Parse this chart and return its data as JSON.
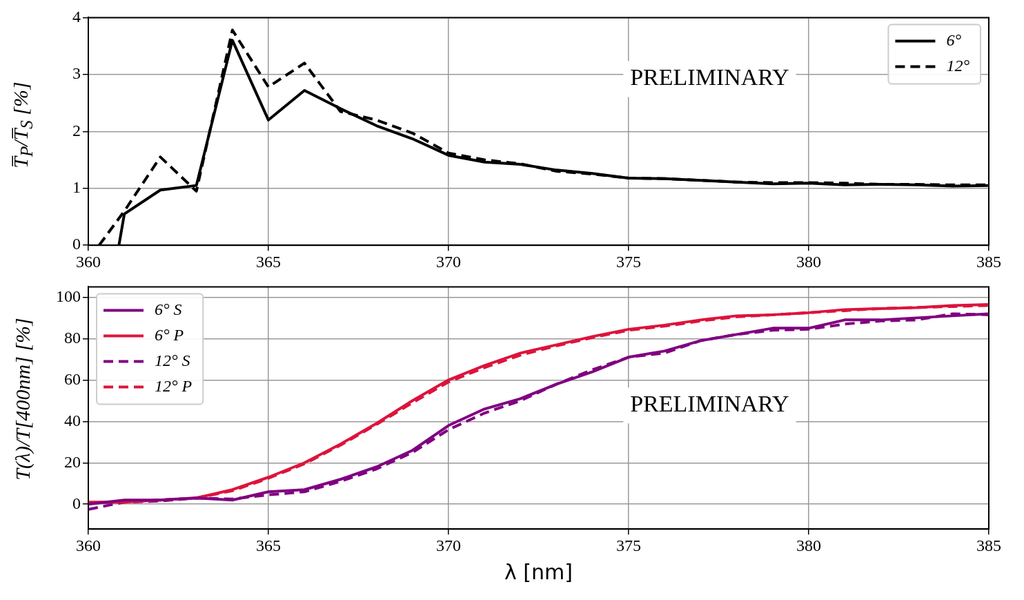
{
  "chart_data": [
    {
      "type": "line",
      "ylabel": "T̅$_{P}$/T̅$_{S}$ [%]",
      "annotations": [
        "PRELIMINARY"
      ],
      "xlim": [
        360,
        385
      ],
      "xticks": [
        360,
        365,
        370,
        375,
        380,
        385
      ],
      "ylim": [
        0,
        4
      ],
      "yticks": [
        0,
        1,
        2,
        3,
        4
      ],
      "grid": true,
      "legend": "top right",
      "series": [
        {
          "name": "6°",
          "color": "#000000",
          "line_style": "solid",
          "x": [
            360.85,
            361,
            362,
            363,
            364,
            365,
            366,
            367,
            368,
            369,
            370,
            371,
            372,
            373,
            374,
            375,
            376,
            377,
            378,
            379,
            380,
            381,
            382,
            383,
            384,
            385
          ],
          "values": [
            0,
            0.55,
            0.97,
            1.05,
            3.6,
            2.2,
            2.72,
            2.4,
            2.1,
            1.87,
            1.58,
            1.46,
            1.42,
            1.32,
            1.26,
            1.18,
            1.17,
            1.14,
            1.11,
            1.08,
            1.09,
            1.06,
            1.07,
            1.06,
            1.04,
            1.05
          ]
        },
        {
          "name": "12°",
          "color": "#000000",
          "line_style": "dashed",
          "x": [
            360.3,
            361,
            362,
            363,
            364,
            365,
            366,
            367,
            368,
            369,
            370,
            371,
            372,
            373,
            374,
            375,
            376,
            377,
            378,
            379,
            380,
            381,
            382,
            383,
            384,
            385
          ],
          "values": [
            0,
            0.6,
            1.55,
            0.95,
            3.78,
            2.78,
            3.2,
            2.35,
            2.2,
            1.97,
            1.62,
            1.5,
            1.43,
            1.3,
            1.25,
            1.18,
            1.17,
            1.14,
            1.11,
            1.1,
            1.1,
            1.09,
            1.07,
            1.07,
            1.06,
            1.06
          ]
        }
      ]
    },
    {
      "type": "line",
      "xlabel": "λ [nm]",
      "ylabel": "T(λ)/T[400nm] [%]",
      "annotations": [
        "PRELIMINARY"
      ],
      "x": [
        360,
        361,
        362,
        363,
        364,
        365,
        366,
        367,
        368,
        369,
        370,
        371,
        372,
        373,
        374,
        375,
        376,
        377,
        378,
        379,
        380,
        381,
        382,
        383,
        384,
        385
      ],
      "xlim": [
        360,
        385
      ],
      "xticks": [
        360,
        365,
        370,
        375,
        380,
        385
      ],
      "ylim": [
        -12,
        105
      ],
      "yticks": [
        0,
        20,
        40,
        60,
        80,
        100
      ],
      "grid": true,
      "legend": "top left",
      "series": [
        {
          "name": "6° S",
          "color": "#800080",
          "line_style": "solid",
          "values": [
            0,
            2,
            2,
            3,
            2,
            6,
            7,
            12,
            18,
            26,
            38,
            46,
            51,
            58,
            64,
            71,
            74,
            79,
            82,
            85,
            85,
            89,
            89,
            90,
            91,
            92
          ]
        },
        {
          "name": "6° P",
          "color": "#dc143c",
          "line_style": "solid",
          "values": [
            1,
            1,
            2,
            3,
            7,
            13,
            20,
            29,
            39,
            50,
            60,
            67,
            73,
            77,
            81,
            84.5,
            86.5,
            89,
            91,
            91.5,
            92.5,
            94,
            94.5,
            95,
            96,
            96.5
          ]
        },
        {
          "name": "12° S",
          "color": "#800080",
          "line_style": "dashed",
          "values": [
            -2.5,
            1,
            1.5,
            3,
            2.5,
            4.5,
            6,
            11,
            17,
            25,
            36,
            44,
            50,
            58,
            65,
            71,
            73,
            79,
            82,
            84,
            84.5,
            87,
            88.5,
            89,
            92,
            91.5
          ]
        },
        {
          "name": "12° P",
          "color": "#dc143c",
          "line_style": "dashed",
          "values": [
            0.5,
            1,
            2,
            3,
            6.5,
            12.5,
            19.5,
            28.5,
            38.5,
            49,
            59,
            66,
            72,
            76.5,
            80.5,
            84,
            86,
            88.5,
            90.5,
            91.5,
            92.5,
            93.5,
            94.5,
            95,
            95.5,
            96
          ]
        }
      ]
    }
  ]
}
